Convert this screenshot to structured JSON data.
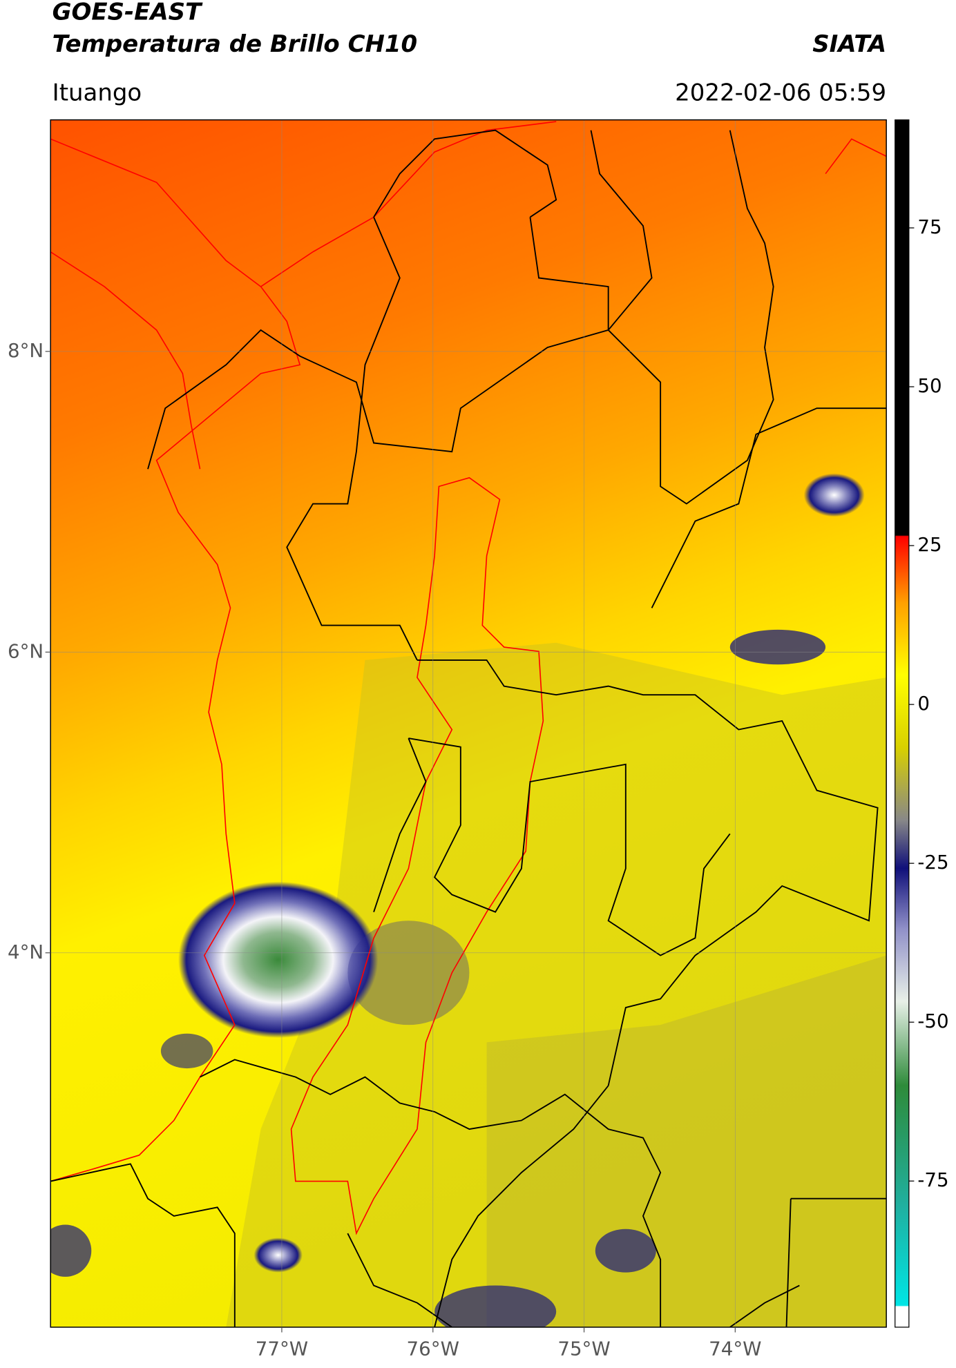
{
  "header": {
    "title": "GOES-EAST",
    "subtitle": "Temperatura de Brillo CH10",
    "source": "SIATA",
    "location": "Ituango",
    "datetime": "2022-02-06 05:59"
  },
  "map": {
    "lonlim": [
      -78.53,
      -73.0
    ],
    "latlim": [
      1.51,
      9.54
    ],
    "grid": true,
    "lonticks": [
      {
        "value": -77,
        "label": "77°W"
      },
      {
        "value": -76,
        "label": "76°W"
      },
      {
        "value": -75,
        "label": "75°W"
      },
      {
        "value": -74,
        "label": "74°W"
      }
    ],
    "latticks": [
      {
        "value": 8,
        "label": "8°N"
      },
      {
        "value": 6,
        "label": "6°N"
      },
      {
        "value": 4,
        "label": "4°N"
      }
    ]
  },
  "colorbar": {
    "lim": [
      -98,
      92
    ],
    "ticks": [
      75,
      50,
      25,
      0,
      -25,
      -50,
      -75
    ]
  }
}
